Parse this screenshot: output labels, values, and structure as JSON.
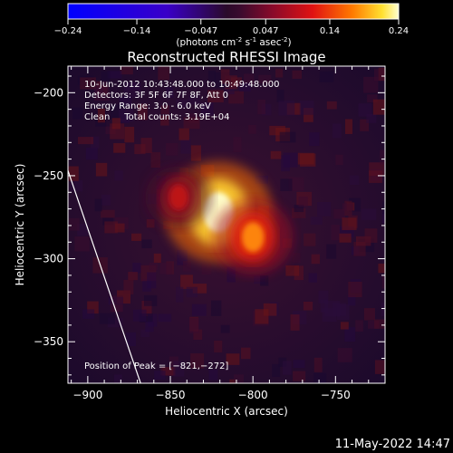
{
  "colorbar": {
    "ticks": [
      "-0.24",
      "-0.14",
      "-0.047",
      "0.047",
      "0.14",
      "0.24"
    ],
    "unit_prefix": "(photons cm",
    "unit_sup1": "-2",
    "unit_mid1": " s",
    "unit_sup2": "-1",
    "unit_mid2": " asec",
    "unit_sup3": "-2",
    "unit_suffix": ")",
    "range": [
      -0.24,
      0.24
    ]
  },
  "chart_data": {
    "type": "heatmap",
    "title": "Reconstructed RHESSI Image",
    "xlabel": "Heliocentric X (arcsec)",
    "ylabel": "Heliocentric Y (arcsec)",
    "xlim": [
      -912,
      -720
    ],
    "ylim": [
      -375,
      -184
    ],
    "xticks": [
      -900,
      -850,
      -800,
      -750
    ],
    "yticks": [
      -200,
      -250,
      -300,
      -350
    ],
    "xtick_labels": [
      "−900",
      "−850",
      "−800",
      "−750"
    ],
    "ytick_labels": [
      "−200",
      "−250",
      "−300",
      "−350"
    ],
    "peak": {
      "x": -821,
      "y": -272
    },
    "sources": [
      {
        "x": -821,
        "y": -272,
        "value": 0.24
      },
      {
        "x": -800,
        "y": -287,
        "value": 0.12
      },
      {
        "x": -845,
        "y": -263,
        "value": 0.06
      }
    ],
    "limb_line": [
      [
        -913,
        -244
      ],
      [
        -868,
        -375
      ]
    ],
    "annotations": [
      "10-Jun-2012 10:43:48.000 to 10:49:48.000",
      "Detectors: 3F 5F 6F 7F 8F, Att 0",
      "Energy Range: 3.0 - 6.0 keV",
      "Clean     Total counts: 3.19E+04"
    ],
    "peak_label": "Position of Peak = [−821,−272]"
  },
  "footer": {
    "date": "11-May-2022 14:47"
  },
  "colors": {
    "background": "#000000",
    "foreground": "#ffffff"
  }
}
